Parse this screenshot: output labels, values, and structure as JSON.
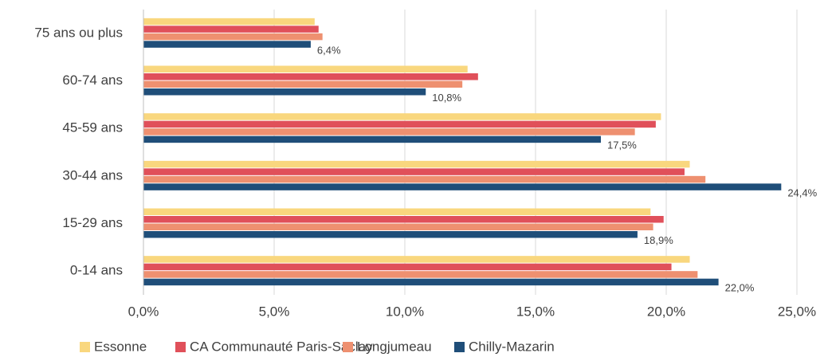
{
  "chart_data": {
    "type": "hbar",
    "categories": [
      "75 ans ou plus",
      "60-74 ans",
      "45-59 ans",
      "30-44 ans",
      "15-29 ans",
      "0-14 ans"
    ],
    "series": [
      {
        "name": "Essonne",
        "color": "#f9d77e",
        "values": [
          6.55,
          12.4,
          19.8,
          20.9,
          19.4,
          20.9
        ]
      },
      {
        "name": "CA Communauté Paris-Saclay",
        "color": "#e0505a",
        "values": [
          6.7,
          12.8,
          19.6,
          20.7,
          19.9,
          20.2
        ]
      },
      {
        "name": "Longjumeau",
        "color": "#ee9070",
        "values": [
          6.85,
          12.2,
          18.8,
          21.5,
          19.5,
          21.2
        ]
      },
      {
        "name": "Chilly-Mazarin",
        "color": "#1f4e79",
        "values": [
          6.4,
          10.8,
          17.5,
          24.4,
          18.9,
          22.0
        ],
        "value_labels": [
          "6,4%",
          "10,8%",
          "17,5%",
          "24,4%",
          "18,9%",
          "22,0%"
        ]
      }
    ],
    "xlim": [
      0,
      25
    ],
    "xticks": [
      {
        "value": 0,
        "label": "0,0%"
      },
      {
        "value": 5,
        "label": "5,0%"
      },
      {
        "value": 10,
        "label": "10,0%"
      },
      {
        "value": 15,
        "label": "15,0%"
      },
      {
        "value": 20,
        "label": "20,0%"
      },
      {
        "value": 25,
        "label": "25,0%"
      }
    ],
    "grid": true,
    "legend": "bottom"
  }
}
